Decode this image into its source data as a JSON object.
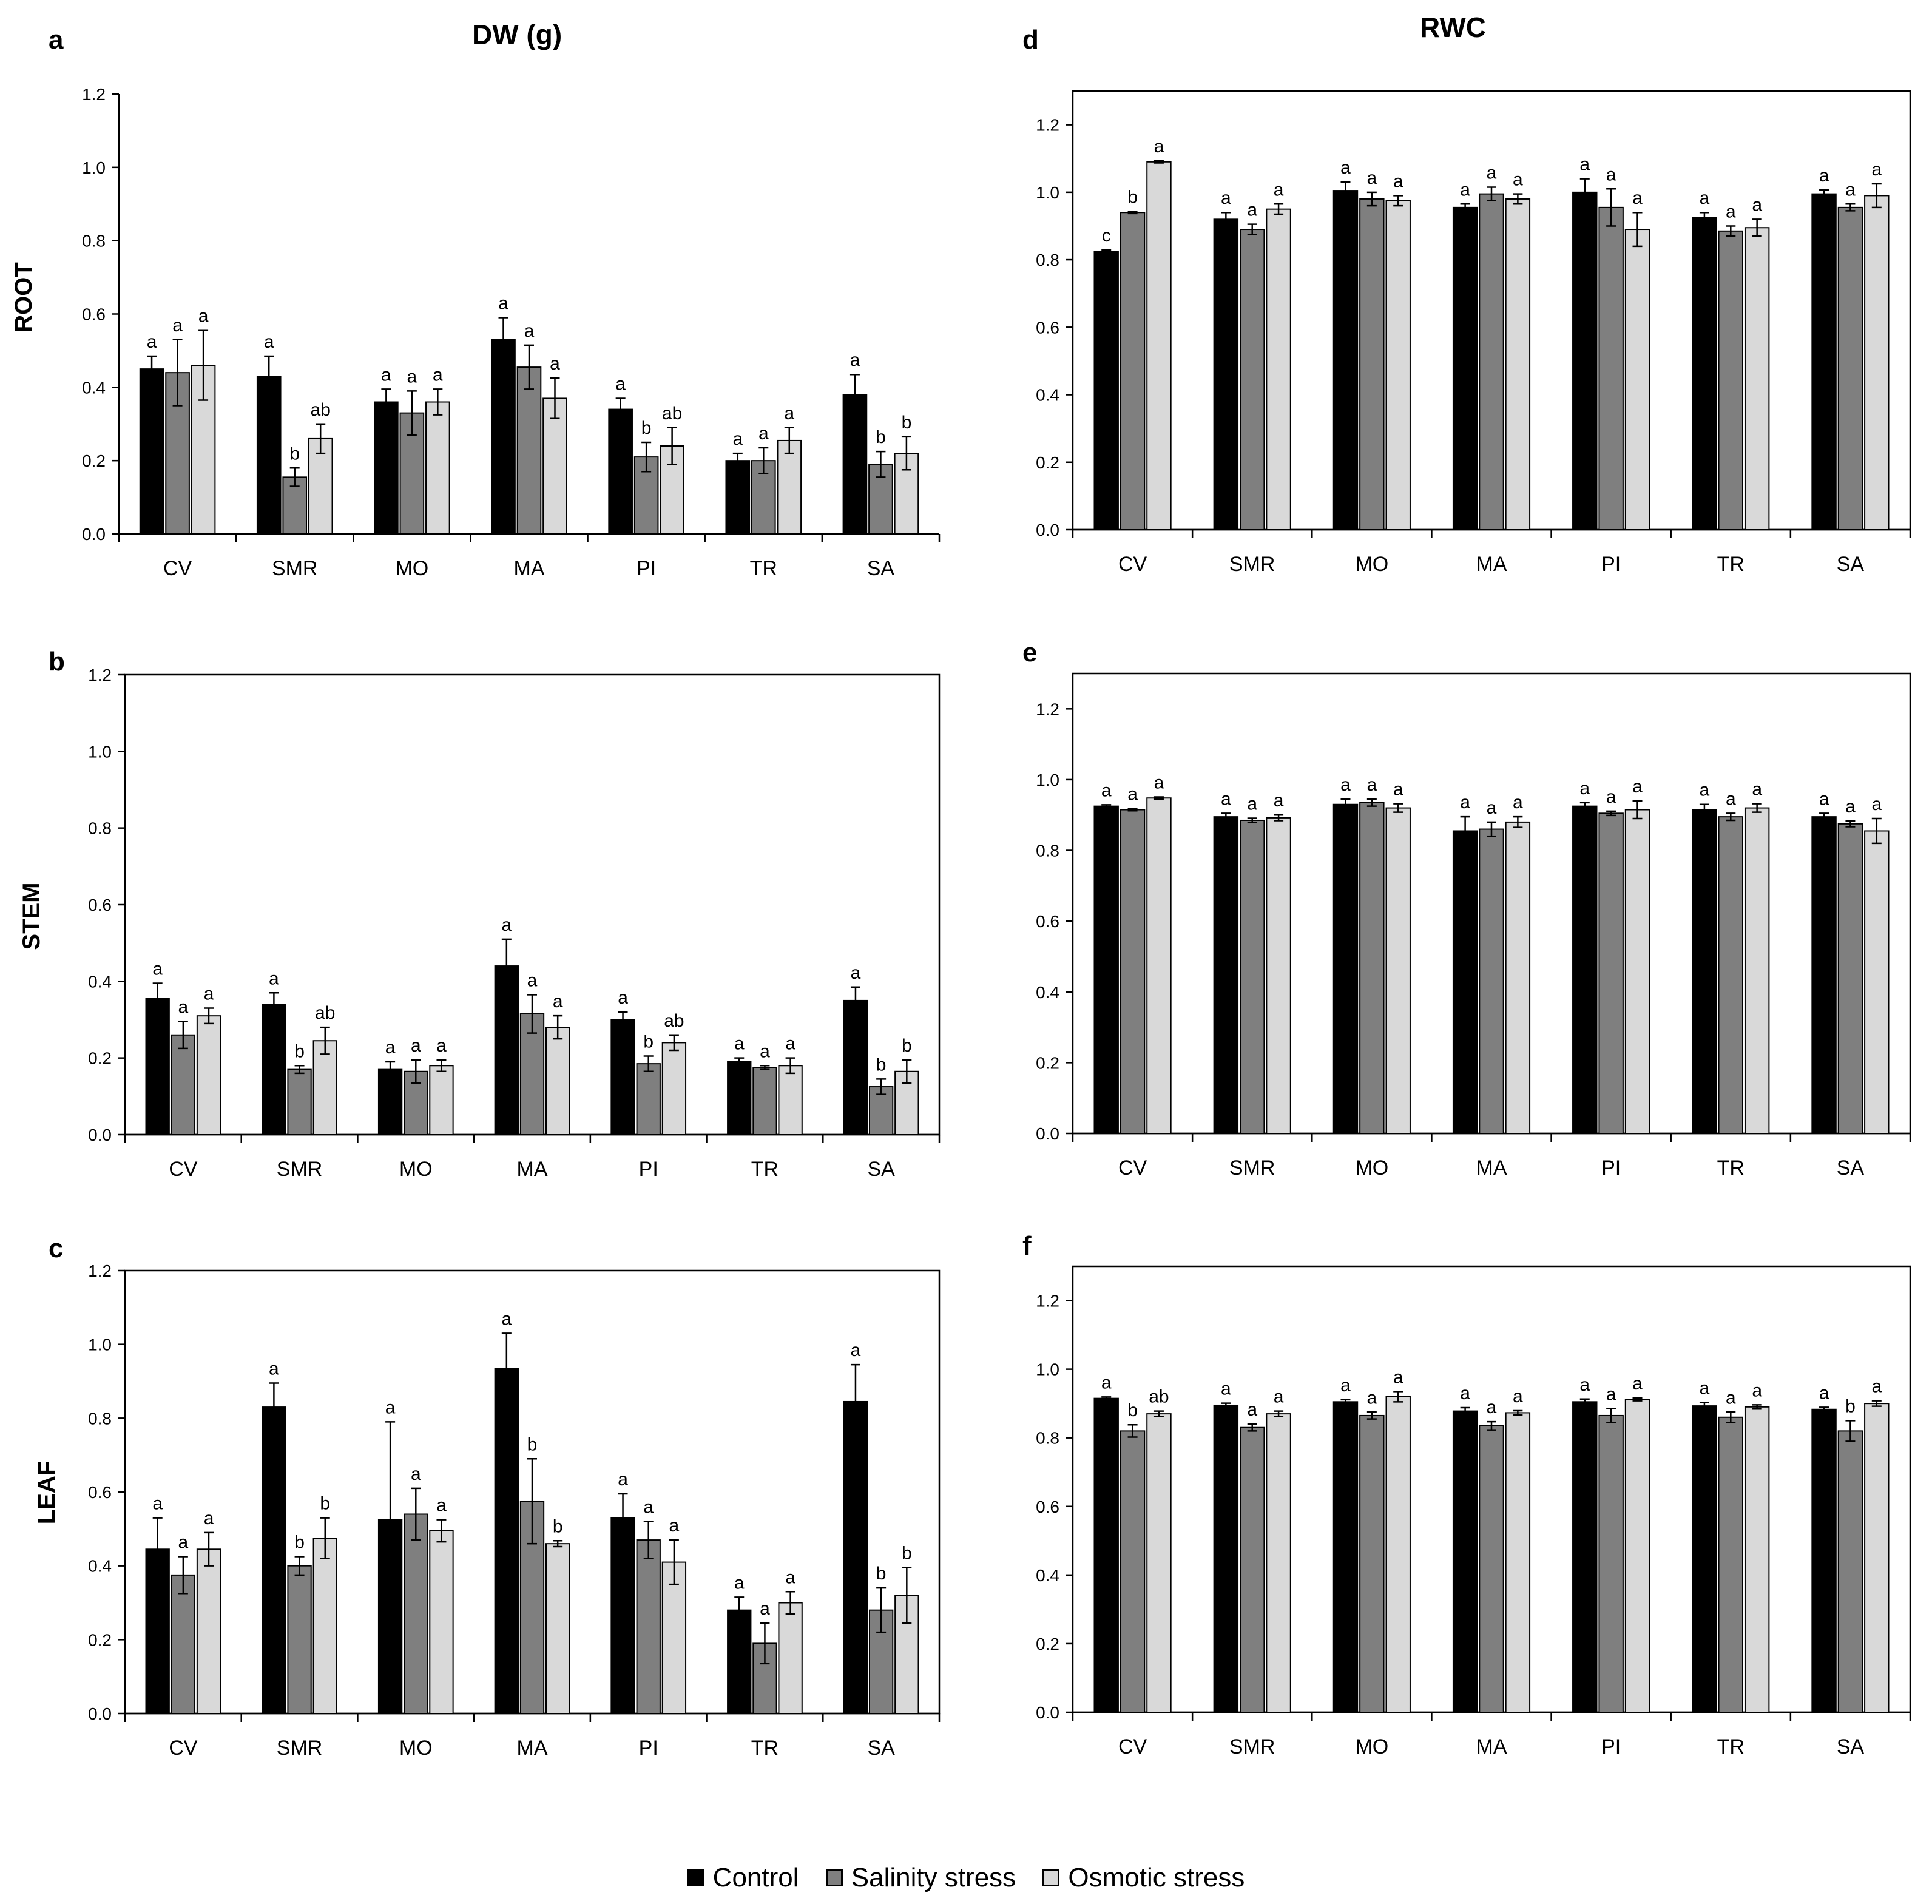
{
  "figure": {
    "col_titles": [
      "DW (g)",
      "RWC"
    ],
    "legend": [
      {
        "label": "Control",
        "color": "#000000"
      },
      {
        "label": "Salinity stress",
        "color": "#7f7f7f"
      },
      {
        "label": "Osmotic stress",
        "color": "#d9d9d9"
      }
    ]
  },
  "chart_data": [
    {
      "panel": "a",
      "row_label": "ROOT",
      "type": "bar",
      "categories": [
        "CV",
        "SMR",
        "MO",
        "MA",
        "PI",
        "TR",
        "SA"
      ],
      "ylim": [
        0,
        1.2
      ],
      "yticks": [
        "0.0",
        "0.2",
        "0.4",
        "0.6",
        "0.8",
        "1.0",
        "1.2"
      ],
      "series": [
        {
          "name": "Control",
          "values": [
            0.45,
            0.43,
            0.36,
            0.53,
            0.34,
            0.2,
            0.38
          ],
          "errors": [
            0.035,
            0.055,
            0.035,
            0.06,
            0.03,
            0.02,
            0.055
          ],
          "letters": [
            "a",
            "a",
            "a",
            "a",
            "a",
            "a",
            "a"
          ]
        },
        {
          "name": "Salinity stress",
          "values": [
            0.44,
            0.155,
            0.33,
            0.455,
            0.21,
            0.2,
            0.19
          ],
          "errors": [
            0.09,
            0.025,
            0.06,
            0.06,
            0.04,
            0.035,
            0.035
          ],
          "letters": [
            "a",
            "b",
            "a",
            "a",
            "b",
            "a",
            "b"
          ]
        },
        {
          "name": "Osmotic stress",
          "values": [
            0.46,
            0.26,
            0.36,
            0.37,
            0.24,
            0.255,
            0.22
          ],
          "errors": [
            0.095,
            0.04,
            0.035,
            0.055,
            0.05,
            0.035,
            0.045
          ],
          "letters": [
            "a",
            "ab",
            "a",
            "a",
            "ab",
            "a",
            "b"
          ]
        }
      ]
    },
    {
      "panel": "b",
      "row_label": "STEM",
      "type": "bar",
      "categories": [
        "CV",
        "SMR",
        "MO",
        "MA",
        "PI",
        "TR",
        "SA"
      ],
      "ylim": [
        0,
        1.2
      ],
      "yticks": [
        "0.0",
        "0.2",
        "0.4",
        "0.6",
        "0.8",
        "1.0",
        "1.2"
      ],
      "series": [
        {
          "name": "Control",
          "values": [
            0.355,
            0.34,
            0.17,
            0.44,
            0.3,
            0.19,
            0.35
          ],
          "errors": [
            0.04,
            0.03,
            0.02,
            0.07,
            0.02,
            0.01,
            0.035
          ],
          "letters": [
            "a",
            "a",
            "a",
            "a",
            "a",
            "a",
            "a"
          ]
        },
        {
          "name": "Salinity stress",
          "values": [
            0.26,
            0.17,
            0.165,
            0.315,
            0.185,
            0.175,
            0.125
          ],
          "errors": [
            0.035,
            0.01,
            0.03,
            0.05,
            0.02,
            0.005,
            0.02
          ],
          "letters": [
            "a",
            "b",
            "a",
            "a",
            "b",
            "a",
            "b"
          ]
        },
        {
          "name": "Osmotic stress",
          "values": [
            0.31,
            0.245,
            0.18,
            0.28,
            0.24,
            0.18,
            0.165
          ],
          "errors": [
            0.02,
            0.035,
            0.015,
            0.03,
            0.02,
            0.02,
            0.03
          ],
          "letters": [
            "a",
            "ab",
            "a",
            "a",
            "ab",
            "a",
            "b"
          ]
        }
      ]
    },
    {
      "panel": "c",
      "row_label": "LEAF",
      "type": "bar",
      "categories": [
        "CV",
        "SMR",
        "MO",
        "MA",
        "PI",
        "TR",
        "SA"
      ],
      "ylim": [
        0,
        1.2
      ],
      "yticks": [
        "0.0",
        "0.2",
        "0.4",
        "0.6",
        "0.8",
        "1.0",
        "1.2"
      ],
      "series": [
        {
          "name": "Control",
          "values": [
            0.445,
            0.83,
            0.525,
            0.935,
            0.53,
            0.28,
            0.845
          ],
          "errors": [
            0.085,
            0.065,
            0.265,
            0.095,
            0.065,
            0.035,
            0.1
          ],
          "letters": [
            "a",
            "a",
            "a",
            "a",
            "a",
            "a",
            "a"
          ]
        },
        {
          "name": "Salinity stress",
          "values": [
            0.375,
            0.4,
            0.54,
            0.575,
            0.47,
            0.19,
            0.28
          ],
          "errors": [
            0.05,
            0.025,
            0.07,
            0.115,
            0.05,
            0.055,
            0.06
          ],
          "letters": [
            "a",
            "b",
            "a",
            "b",
            "a",
            "a",
            "b"
          ]
        },
        {
          "name": "Osmotic stress",
          "values": [
            0.445,
            0.475,
            0.495,
            0.46,
            0.41,
            0.3,
            0.32
          ],
          "errors": [
            0.045,
            0.055,
            0.03,
            0.008,
            0.06,
            0.03,
            0.075
          ],
          "letters": [
            "a",
            "b",
            "a",
            "b",
            "a",
            "a",
            "b"
          ]
        }
      ]
    },
    {
      "panel": "d",
      "row_label": "",
      "type": "bar",
      "categories": [
        "CV",
        "SMR",
        "MO",
        "MA",
        "PI",
        "TR",
        "SA"
      ],
      "ylim": [
        0,
        1.3
      ],
      "yticks": [
        "0.0",
        "0.2",
        "0.4",
        "0.6",
        "0.8",
        "1.0",
        "1.2"
      ],
      "series": [
        {
          "name": "Control",
          "values": [
            0.825,
            0.92,
            1.005,
            0.955,
            1.0,
            0.925,
            0.995
          ],
          "errors": [
            0.004,
            0.02,
            0.025,
            0.01,
            0.04,
            0.015,
            0.012
          ],
          "letters": [
            "c",
            "a",
            "a",
            "a",
            "a",
            "a",
            "a"
          ]
        },
        {
          "name": "Salinity stress",
          "values": [
            0.94,
            0.89,
            0.98,
            0.995,
            0.955,
            0.885,
            0.955
          ],
          "errors": [
            0.003,
            0.015,
            0.02,
            0.02,
            0.055,
            0.015,
            0.01
          ],
          "letters": [
            "b",
            "a",
            "a",
            "a",
            "a",
            "a",
            "a"
          ]
        },
        {
          "name": "Osmotic stress",
          "values": [
            1.09,
            0.95,
            0.975,
            0.98,
            0.89,
            0.895,
            0.99
          ],
          "errors": [
            0.003,
            0.015,
            0.015,
            0.015,
            0.05,
            0.025,
            0.035
          ],
          "letters": [
            "a",
            "a",
            "a",
            "a",
            "a",
            "a",
            "a"
          ]
        }
      ]
    },
    {
      "panel": "e",
      "row_label": "",
      "type": "bar",
      "categories": [
        "CV",
        "SMR",
        "MO",
        "MA",
        "PI",
        "TR",
        "SA"
      ],
      "ylim": [
        0,
        1.3
      ],
      "yticks": [
        "0.0",
        "0.2",
        "0.4",
        "0.6",
        "0.8",
        "1.0",
        "1.2"
      ],
      "series": [
        {
          "name": "Control",
          "values": [
            0.925,
            0.895,
            0.93,
            0.855,
            0.925,
            0.915,
            0.895
          ],
          "errors": [
            0.004,
            0.01,
            0.015,
            0.04,
            0.01,
            0.015,
            0.01
          ],
          "letters": [
            "a",
            "a",
            "a",
            "a",
            "a",
            "a",
            "a"
          ]
        },
        {
          "name": "Salinity stress",
          "values": [
            0.915,
            0.885,
            0.935,
            0.86,
            0.905,
            0.895,
            0.875
          ],
          "errors": [
            0.003,
            0.006,
            0.01,
            0.02,
            0.006,
            0.01,
            0.008
          ],
          "letters": [
            "a",
            "a",
            "a",
            "a",
            "a",
            "a",
            "a"
          ]
        },
        {
          "name": "Osmotic stress",
          "values": [
            0.948,
            0.892,
            0.92,
            0.88,
            0.915,
            0.92,
            0.855
          ],
          "errors": [
            0.003,
            0.008,
            0.012,
            0.015,
            0.025,
            0.012,
            0.035
          ],
          "letters": [
            "a",
            "a",
            "a",
            "a",
            "a",
            "a",
            "a"
          ]
        }
      ]
    },
    {
      "panel": "f",
      "row_label": "",
      "type": "bar",
      "categories": [
        "CV",
        "SMR",
        "MO",
        "MA",
        "PI",
        "TR",
        "SA"
      ],
      "ylim": [
        0,
        1.3
      ],
      "yticks": [
        "0.0",
        "0.2",
        "0.4",
        "0.6",
        "0.8",
        "1.0",
        "1.2"
      ],
      "series": [
        {
          "name": "Control",
          "values": [
            0.915,
            0.895,
            0.905,
            0.878,
            0.905,
            0.893,
            0.883
          ],
          "errors": [
            0.004,
            0.006,
            0.006,
            0.01,
            0.008,
            0.01,
            0.006
          ],
          "letters": [
            "a",
            "a",
            "a",
            "a",
            "a",
            "a",
            "a"
          ]
        },
        {
          "name": "Salinity stress",
          "values": [
            0.82,
            0.83,
            0.865,
            0.835,
            0.865,
            0.86,
            0.82
          ],
          "errors": [
            0.018,
            0.01,
            0.01,
            0.012,
            0.02,
            0.015,
            0.03
          ],
          "letters": [
            "b",
            "a",
            "a",
            "a",
            "a",
            "a",
            "b"
          ]
        },
        {
          "name": "Osmotic stress",
          "values": [
            0.87,
            0.87,
            0.92,
            0.873,
            0.912,
            0.89,
            0.9
          ],
          "errors": [
            0.008,
            0.008,
            0.015,
            0.006,
            0.004,
            0.006,
            0.008
          ],
          "letters": [
            "ab",
            "a",
            "a",
            "a",
            "a",
            "a",
            "a"
          ]
        }
      ]
    }
  ]
}
